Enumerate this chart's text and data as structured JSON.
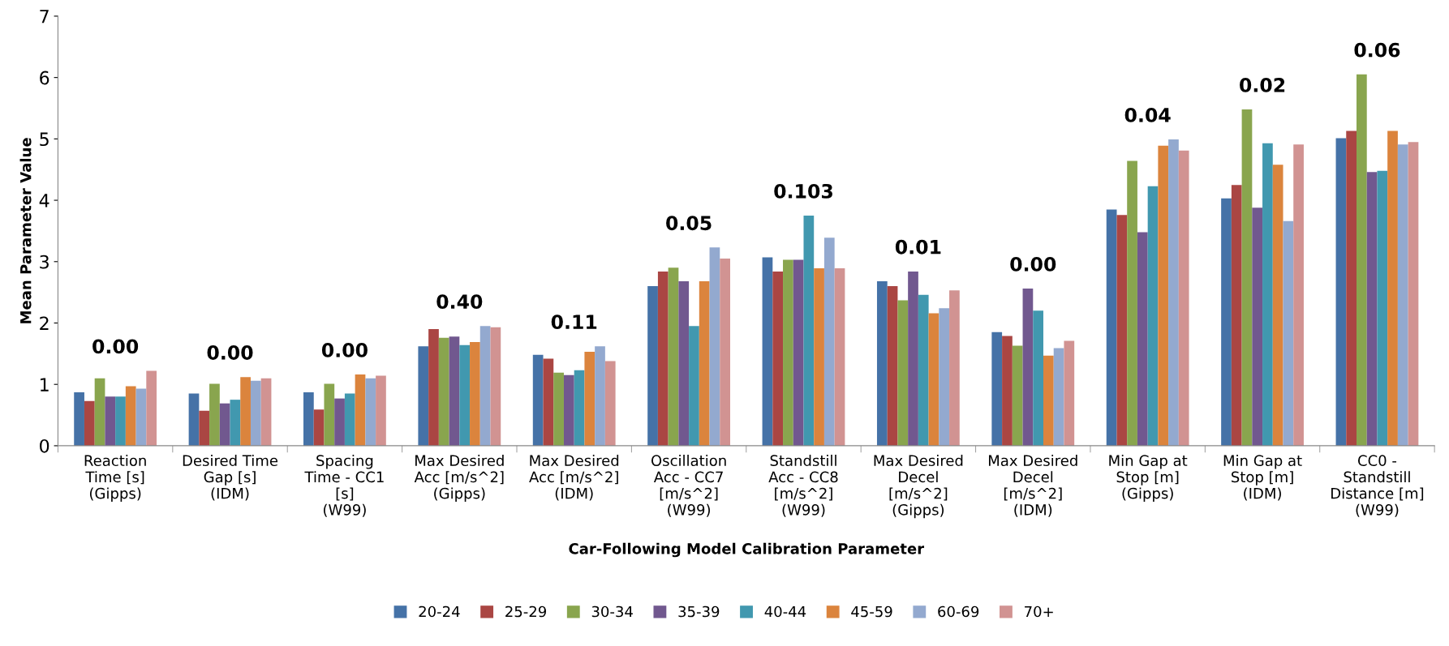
{
  "chart_data": {
    "type": "bar",
    "xlabel": "Car-Following Model Calibration Parameter",
    "ylabel": "Mean Parameter Value",
    "categories": [
      "Reaction\nTime [s]\n(Gipps)",
      "Desired Time\nGap [s]\n(IDM)",
      "Spacing\nTime - CC1\n[s]\n(W99)",
      "Max Desired\nAcc [m/s^2]\n(Gipps)",
      "Max Desired\nAcc [m/s^2]\n(IDM)",
      "Oscillation\nAcc - CC7\n[m/s^2]\n(W99)",
      "Standstill\nAcc - CC8\n[m/s^2]\n(W99)",
      "Max Desired\nDecel\n[m/s^2]\n(Gipps)",
      "Max Desired\nDecel\n[m/s^2]\n(IDM)",
      "Min Gap at\nStop [m]\n(Gipps)",
      "Min Gap at\nStop [m]\n(IDM)",
      "CC0 -\nStandstill\nDistance [m]\n(W99)"
    ],
    "series": [
      {
        "name": "20-24",
        "color": "#4572a7",
        "values": [
          0.87,
          0.85,
          0.87,
          1.62,
          1.48,
          2.6,
          3.07,
          2.68,
          1.85,
          3.85,
          4.03,
          5.01
        ]
      },
      {
        "name": "25-29",
        "color": "#aa4643",
        "values": [
          0.73,
          0.57,
          0.59,
          1.9,
          1.42,
          2.84,
          2.84,
          2.6,
          1.79,
          3.76,
          4.25,
          5.13
        ]
      },
      {
        "name": "30-34",
        "color": "#89a54e",
        "values": [
          1.1,
          1.01,
          1.01,
          1.76,
          1.19,
          2.9,
          3.03,
          2.37,
          1.63,
          4.64,
          5.48,
          6.05
        ]
      },
      {
        "name": "35-39",
        "color": "#71588f",
        "values": [
          0.8,
          0.69,
          0.77,
          1.78,
          1.15,
          2.68,
          3.03,
          2.84,
          2.56,
          3.48,
          3.88,
          4.46
        ]
      },
      {
        "name": "40-44",
        "color": "#4198af",
        "values": [
          0.8,
          0.75,
          0.85,
          1.64,
          1.23,
          1.95,
          3.75,
          2.46,
          2.2,
          4.23,
          4.93,
          4.48
        ]
      },
      {
        "name": "45-59",
        "color": "#db843d",
        "values": [
          0.97,
          1.12,
          1.16,
          1.69,
          1.53,
          2.68,
          2.89,
          2.16,
          1.47,
          4.89,
          4.58,
          5.13
        ]
      },
      {
        "name": "60-69",
        "color": "#93a9cf",
        "values": [
          0.93,
          1.06,
          1.1,
          1.95,
          1.62,
          3.23,
          3.39,
          2.24,
          1.59,
          4.99,
          3.66,
          4.91
        ]
      },
      {
        "name": "70+",
        "color": "#d19392",
        "values": [
          1.22,
          1.1,
          1.14,
          1.93,
          1.38,
          3.05,
          2.89,
          2.53,
          1.71,
          4.81,
          4.91,
          4.95
        ]
      }
    ],
    "annotations": [
      "0.00",
      "0.00",
      "0.00",
      "0.40",
      "0.11",
      "0.05",
      "0.103",
      "0.01",
      "0.00",
      "0.04",
      "0.02",
      "0.06"
    ],
    "ylim": [
      0,
      7
    ],
    "yticks": [
      0,
      1,
      2,
      3,
      4,
      5,
      6,
      7
    ],
    "grid": false,
    "legend": "bottom"
  }
}
